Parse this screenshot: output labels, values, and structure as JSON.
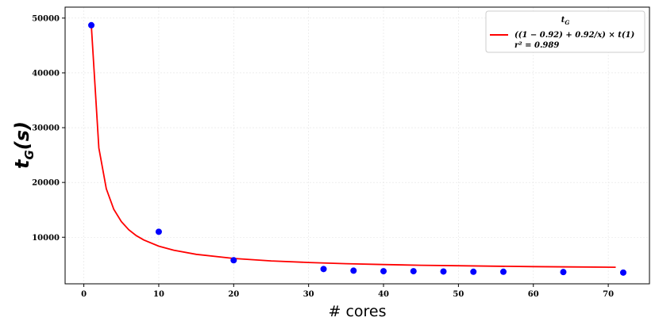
{
  "chart_data": {
    "type": "scatter",
    "xlabel": "# cores",
    "ylabel": "t_G(s)",
    "xlim": [
      -2.5,
      75.5
    ],
    "ylim": [
      1500,
      52000
    ],
    "x_ticks": [
      0,
      10,
      20,
      30,
      40,
      50,
      60,
      70
    ],
    "y_ticks": [
      10000,
      20000,
      30000,
      40000,
      50000
    ],
    "x_tick_labels": [
      "0",
      "10",
      "20",
      "30",
      "40",
      "50",
      "60",
      "70"
    ],
    "y_tick_labels": [
      "10000",
      "20000",
      "30000",
      "40000",
      "50000"
    ],
    "grid": true,
    "legend_position": "top-right",
    "legend": {
      "title": "t_G",
      "line_label": "((1 − 0.92) + 0.92/x) × t(1)",
      "r2_label": "r² = 0.989"
    },
    "series": [
      {
        "kind": "points",
        "color": "#0000ff",
        "x": [
          1,
          10,
          20,
          32,
          36,
          40,
          44,
          48,
          52,
          56,
          64,
          72
        ],
        "y": [
          48700,
          11000,
          5800,
          4200,
          3900,
          3800,
          3800,
          3750,
          3700,
          3700,
          3650,
          3550
        ]
      },
      {
        "kind": "line",
        "color": "#ff0000",
        "model": {
          "t1": 48700,
          "p": 0.92
        },
        "x": [
          1,
          2,
          3,
          4,
          5,
          6,
          7,
          8,
          10,
          12,
          15,
          20,
          25,
          30,
          35,
          40,
          45,
          50,
          55,
          60,
          65,
          71
        ]
      }
    ]
  }
}
